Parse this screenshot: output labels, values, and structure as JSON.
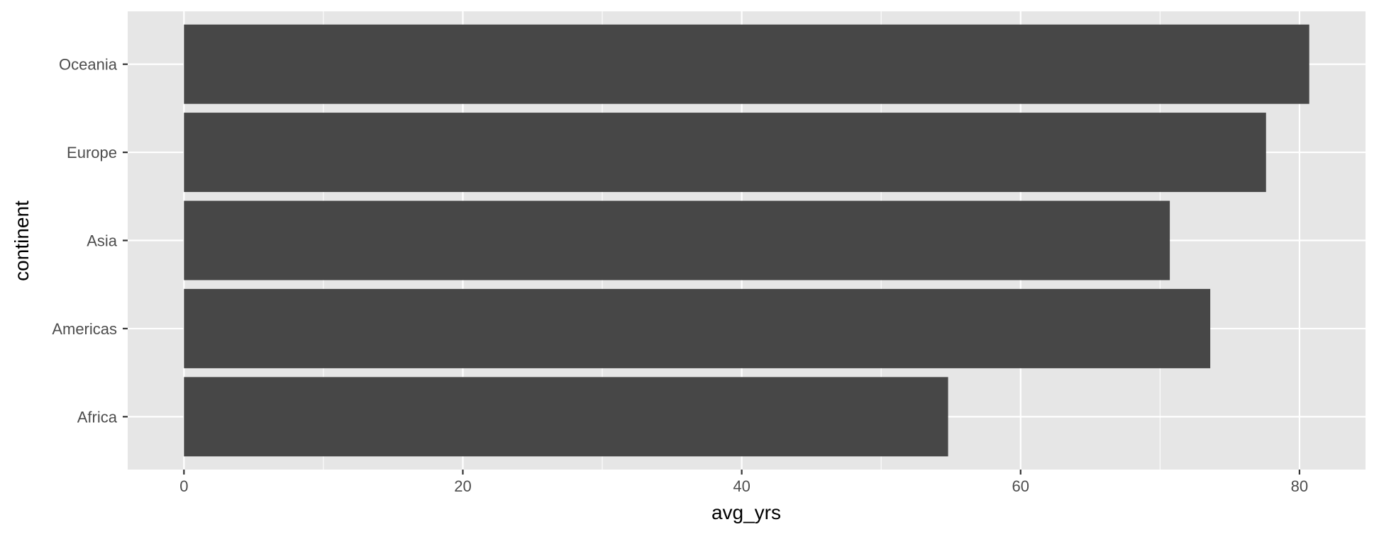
{
  "chart_data": {
    "type": "bar",
    "orientation": "horizontal",
    "categories": [
      "Africa",
      "Americas",
      "Asia",
      "Europe",
      "Oceania"
    ],
    "values": [
      54.8,
      73.6,
      70.7,
      77.6,
      80.7
    ],
    "xlabel": "avg_yrs",
    "ylabel": "continent",
    "xlim": [
      -4.035,
      84.735
    ],
    "x_ticks": [
      0,
      20,
      40,
      60,
      80
    ],
    "x_tick_labels": [
      "0",
      "20",
      "40",
      "60",
      "80"
    ],
    "grid": true,
    "colors": {
      "panel_background": "#e6e6e6",
      "grid_major": "#ffffff",
      "bar_fill": "#474747",
      "tick_color": "#333333",
      "tick_label": "#4d4d4d",
      "axis_title": "#000000"
    }
  }
}
